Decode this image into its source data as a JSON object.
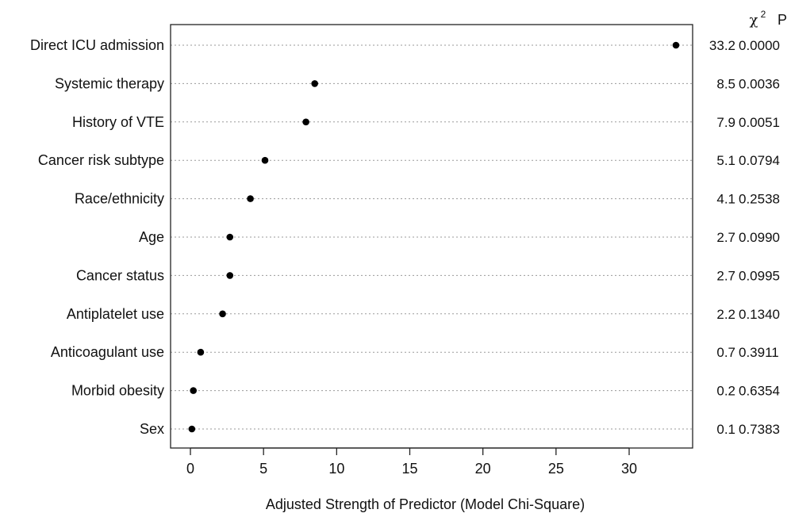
{
  "chart_data": {
    "type": "scatter",
    "title": "",
    "xlabel": "Adjusted Strength of Predictor (Model Chi-Square)",
    "ylabel": "",
    "xlim": [
      -1.5,
      35.5
    ],
    "xticks": [
      0,
      5,
      10,
      15,
      20,
      25,
      30
    ],
    "grid": "horizontal-dotted",
    "stat_headers": {
      "chi_symbol": "χ",
      "chi_sup": "2",
      "p": "P"
    },
    "rows": [
      {
        "label": "Direct ICU admission",
        "chi2": 33.2,
        "chi2_text": "33.2",
        "p_text": "0.0000"
      },
      {
        "label": "Systemic therapy",
        "chi2": 8.5,
        "chi2_text": "8.5",
        "p_text": "0.0036"
      },
      {
        "label": "History of VTE",
        "chi2": 7.9,
        "chi2_text": "7.9",
        "p_text": "0.0051"
      },
      {
        "label": "Cancer risk subtype",
        "chi2": 5.1,
        "chi2_text": "5.1",
        "p_text": "0.0794"
      },
      {
        "label": "Race/ethnicity",
        "chi2": 4.1,
        "chi2_text": "4.1",
        "p_text": "0.2538"
      },
      {
        "label": "Age",
        "chi2": 2.7,
        "chi2_text": "2.7",
        "p_text": "0.0990"
      },
      {
        "label": "Cancer status",
        "chi2": 2.7,
        "chi2_text": "2.7",
        "p_text": "0.0995"
      },
      {
        "label": "Antiplatelet use",
        "chi2": 2.2,
        "chi2_text": "2.2",
        "p_text": "0.1340"
      },
      {
        "label": "Anticoagulant use",
        "chi2": 0.7,
        "chi2_text": "0.7",
        "p_text": "0.3911"
      },
      {
        "label": "Morbid obesity",
        "chi2": 0.2,
        "chi2_text": "0.2",
        "p_text": "0.6354"
      },
      {
        "label": "Sex",
        "chi2": 0.1,
        "chi2_text": "0.1",
        "p_text": "0.7383"
      }
    ]
  }
}
